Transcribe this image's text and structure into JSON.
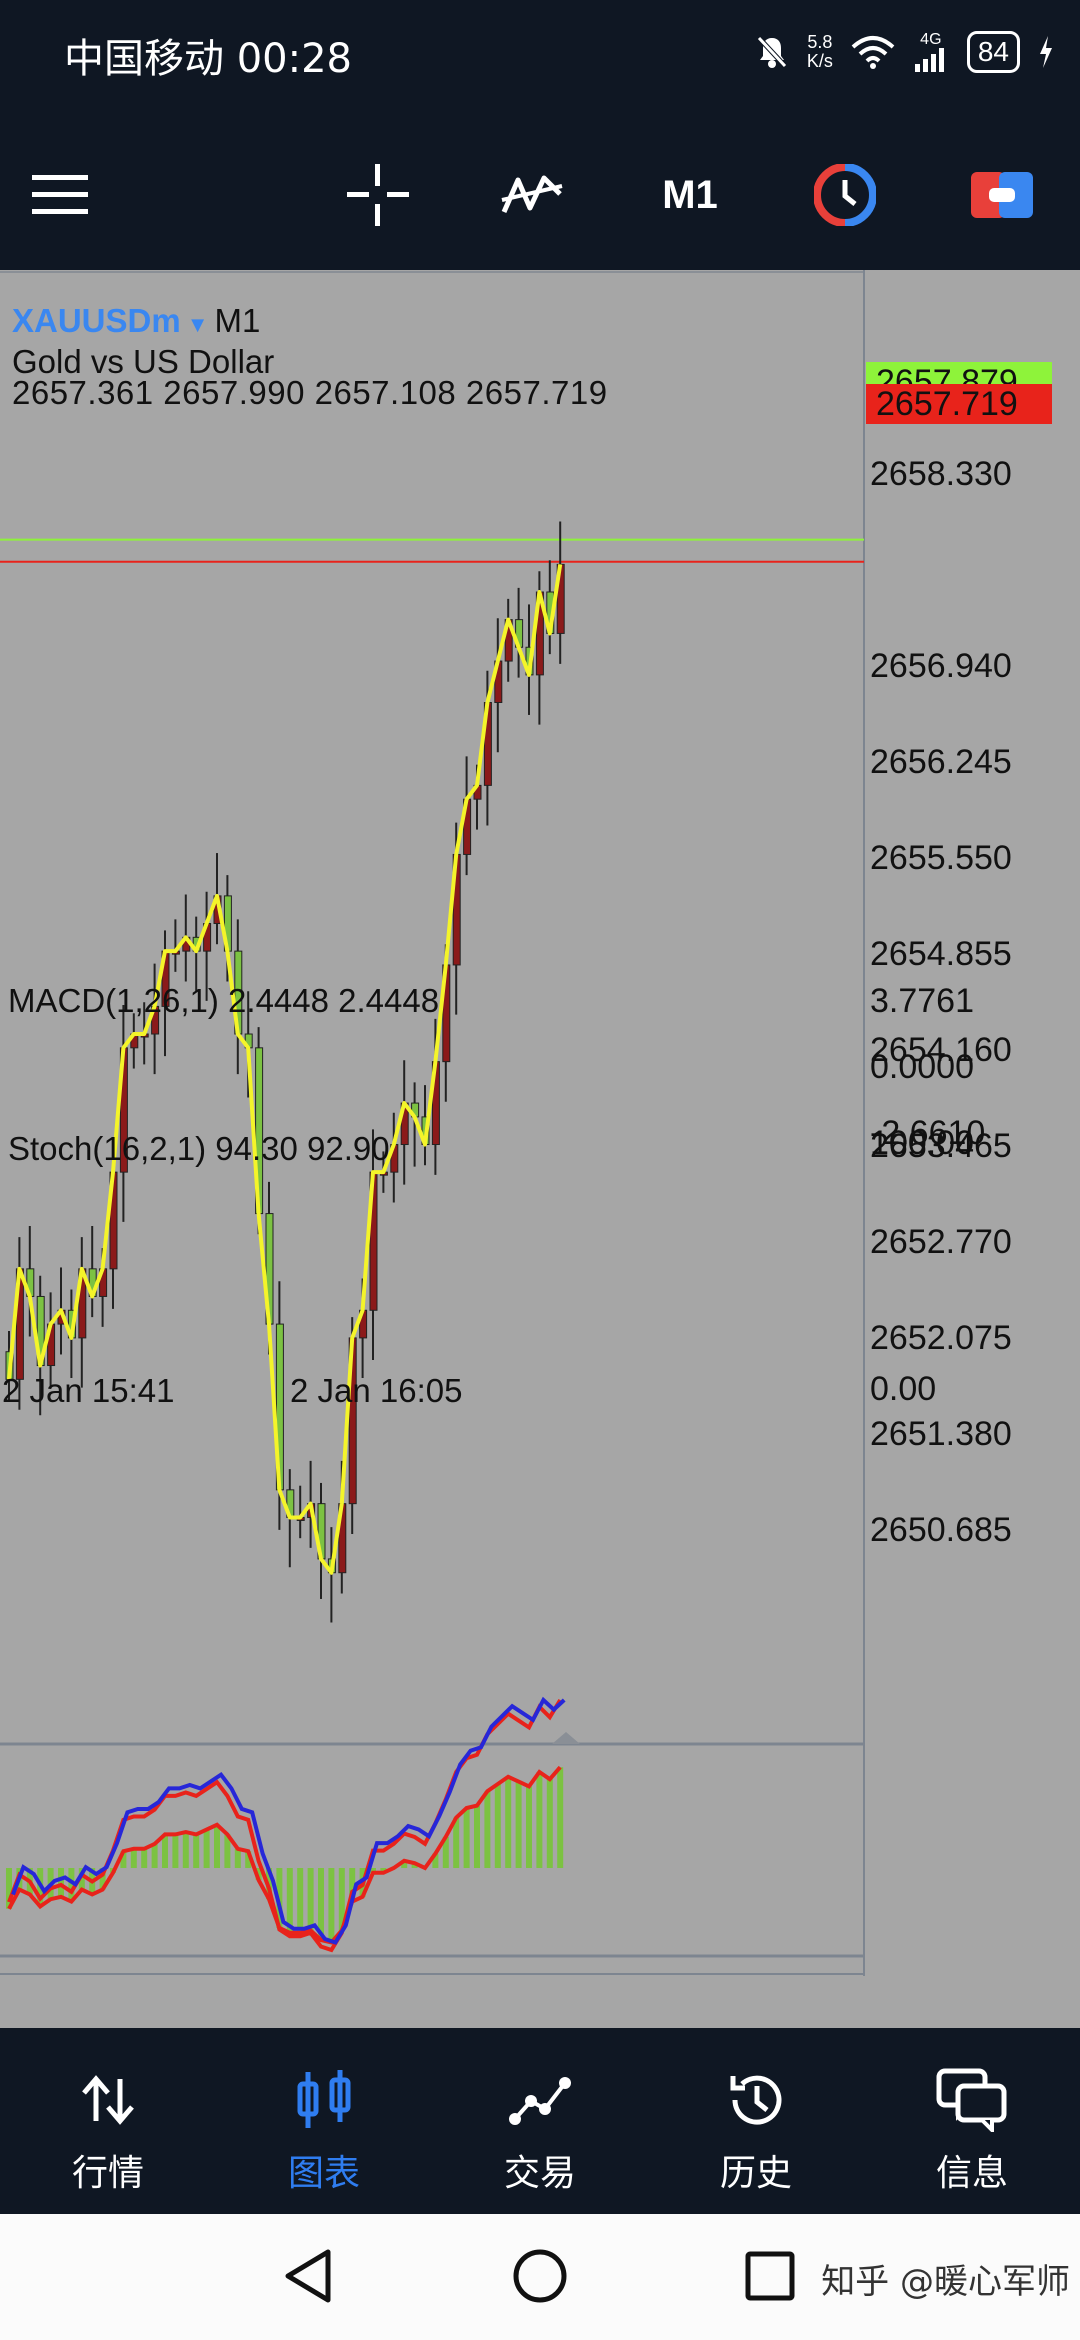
{
  "status": {
    "carrier_time": "中国移动 00:28",
    "net_speed_value": "5.8",
    "net_speed_unit": "K/s",
    "signal_type": "4G",
    "battery": "84"
  },
  "toolbar": {
    "timeframe": "M1",
    "icons": [
      "menu-icon",
      "crosshair-icon",
      "indicators-icon",
      "timeframe",
      "clock-icon",
      "trade-icon"
    ]
  },
  "symbol": {
    "name": "XAUUSDm",
    "timeframe": "M1",
    "description": "Gold vs US Dollar",
    "ohlc": "2657.361 2657.990 2657.108 2657.719"
  },
  "price_scale": {
    "labels": [
      "2658.330",
      "2656.940",
      "2656.245",
      "2655.550",
      "2654.855",
      "2654.160",
      "2653.465",
      "2652.770",
      "2652.075",
      "2651.380",
      "2650.685"
    ],
    "ask": "2657.879",
    "bid": "2657.719",
    "ask_color": "#8ef33a",
    "bid_color": "#e8231b"
  },
  "macd": {
    "label": "MACD(1,26,1) 2.4448 2.4448",
    "scale": [
      "3.7761",
      "0.0000",
      "-2.6610"
    ]
  },
  "stoch": {
    "label": "Stoch(16,2,1) 94.30 92.90",
    "scale": [
      "100.00",
      "0.00"
    ]
  },
  "time_axis": [
    "2 Jan 15:41",
    "2 Jan 16:05"
  ],
  "chart_data": {
    "type": "candlestick",
    "close_approx": [
      2651.8,
      2652.6,
      2652.4,
      2651.9,
      2652.2,
      2652.3,
      2652.1,
      2652.6,
      2652.4,
      2652.6,
      2653.3,
      2654.2,
      2654.3,
      2654.3,
      2654.5,
      2654.9,
      2654.9,
      2655.0,
      2654.9,
      2655.1,
      2655.3,
      2654.9,
      2654.3,
      2654.2,
      2653.0,
      2652.2,
      2651.0,
      2650.8,
      2650.8,
      2650.9,
      2650.5,
      2650.4,
      2650.9,
      2652.1,
      2652.3,
      2653.3,
      2653.3,
      2653.5,
      2653.8,
      2653.7,
      2653.5,
      2654.1,
      2654.8,
      2655.6,
      2656.0,
      2656.1,
      2656.7,
      2657.0,
      2657.3,
      2657.1,
      2656.9,
      2657.5,
      2657.2,
      2657.7
    ],
    "macd_colors": [
      "#7cc242",
      "#e8231b"
    ],
    "stoch_colors": [
      "#e8231b",
      "#2727d8"
    ]
  },
  "bottom_nav": {
    "items": [
      {
        "label": "行情",
        "icon": "quotes-icon"
      },
      {
        "label": "图表",
        "icon": "chart-icon"
      },
      {
        "label": "交易",
        "icon": "trade-icon"
      },
      {
        "label": "历史",
        "icon": "history-icon"
      },
      {
        "label": "信息",
        "icon": "messages-icon"
      }
    ],
    "active_color": "#2f7df0"
  },
  "watermark": "知乎 @暖心军师"
}
